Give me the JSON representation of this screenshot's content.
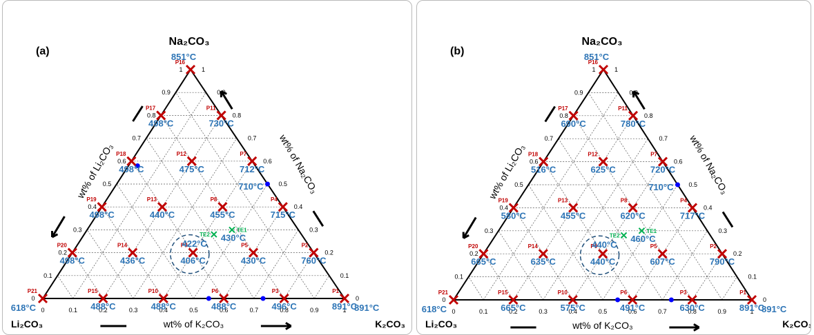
{
  "panels": [
    {
      "label": "(a)",
      "corners": {
        "top": "Na₂CO₃",
        "left": "Li₂CO₃",
        "right": "K₂CO₃"
      },
      "axis_labels": {
        "left": "wt% of Li₂CO₃",
        "right": "wt% of Na₂CO₃",
        "bottom": "wt% of K₂CO₃"
      },
      "ticks": {
        "bottom": [
          "0",
          "0.1",
          "0.2",
          "0.3",
          "0.4",
          "0.5",
          "0.6",
          "0.7",
          "0.8",
          "0.9",
          "1"
        ],
        "left": [
          "1",
          "0.9",
          "0.8",
          "0.7",
          "0.6",
          "0.5",
          "0.4",
          "0.3",
          "0.2",
          "0.1",
          "0"
        ],
        "right": [
          "0",
          "0.1",
          "0.2",
          "0.3",
          "0.4",
          "0.5",
          "0.6",
          "0.7",
          "0.8",
          "0.9",
          "1"
        ]
      },
      "temps": {
        "na2co3": "851°C",
        "li2co3": "618°C",
        "k2co3": "891°C"
      },
      "points": [
        {
          "id": "P1",
          "k": 1.0,
          "na": 0.0,
          "temp": "891°C"
        },
        {
          "id": "P2",
          "k": 0.8,
          "na": 0.2,
          "temp": "760°C"
        },
        {
          "id": "P3",
          "k": 0.8,
          "na": 0.0,
          "temp": "496°C"
        },
        {
          "id": "P4",
          "k": 0.6,
          "na": 0.4,
          "temp": "715°C"
        },
        {
          "id": "P5",
          "k": 0.6,
          "na": 0.2,
          "temp": "430°C"
        },
        {
          "id": "P6",
          "k": 0.6,
          "na": 0.0,
          "temp": "488°C"
        },
        {
          "id": "P7",
          "k": 0.4,
          "na": 0.6,
          "temp": "712°C"
        },
        {
          "id": "P8",
          "k": 0.4,
          "na": 0.4,
          "temp": "455°C"
        },
        {
          "id": "P9",
          "k": 0.4,
          "na": 0.2,
          "temp": "406°C"
        },
        {
          "id": "P10",
          "k": 0.4,
          "na": 0.0,
          "temp": "488°C"
        },
        {
          "id": "P11",
          "k": 0.2,
          "na": 0.8,
          "temp": "730°C"
        },
        {
          "id": "P12",
          "k": 0.2,
          "na": 0.6,
          "temp": "475°C"
        },
        {
          "id": "P13",
          "k": 0.2,
          "na": 0.4,
          "temp": "440°C"
        },
        {
          "id": "P14",
          "k": 0.2,
          "na": 0.2,
          "temp": "436°C"
        },
        {
          "id": "P15",
          "k": 0.2,
          "na": 0.0,
          "temp": "488°C"
        },
        {
          "id": "P16",
          "k": 0.0,
          "na": 1.0,
          "temp": ""
        },
        {
          "id": "P17",
          "k": 0.0,
          "na": 0.8,
          "temp": "498°C"
        },
        {
          "id": "P18",
          "k": 0.0,
          "na": 0.6,
          "temp": "498°C"
        },
        {
          "id": "P19",
          "k": 0.0,
          "na": 0.4,
          "temp": "498°C"
        },
        {
          "id": "P20",
          "k": 0.0,
          "na": 0.2,
          "temp": "498°C"
        },
        {
          "id": "P21",
          "k": 0.0,
          "na": 0.0,
          "temp": ""
        }
      ],
      "eutectics": [
        {
          "id": "TE1",
          "k": 0.48,
          "na": 0.3,
          "temp": "430°C"
        },
        {
          "id": "TE2",
          "k": 0.43,
          "na": 0.28,
          "temp": "422°C"
        }
      ],
      "extra_temps": [
        {
          "label": "710°C",
          "k": 0.5,
          "na": 0.5
        }
      ],
      "blue_dots": [
        {
          "k": 0.55,
          "na": 0.0
        },
        {
          "k": 0.73,
          "na": 0.0
        },
        {
          "k": 0.03,
          "na": 0.58
        },
        {
          "k": 0.5,
          "na": 0.5
        }
      ],
      "circle": {
        "k": 0.38,
        "na": 0.2
      }
    },
    {
      "label": "(b)",
      "corners": {
        "top": "Na₂CO₃",
        "left": "Li₂CO₃",
        "right": "K₂CO₃"
      },
      "axis_labels": {
        "left": "wt% of Li₂CO₃",
        "right": "wt% of Na₂CO₃",
        "bottom": "wt% of K₂CO₃"
      },
      "ticks": {
        "bottom": [
          "0",
          "0.1",
          "0.2",
          "0.3",
          "0.4",
          "0.5",
          "0.6",
          "0.7",
          "0.8",
          "0.9",
          "1"
        ],
        "left": [
          "1",
          "0.9",
          "0.8",
          "0.7",
          "0.6",
          "0.5",
          "0.4",
          "0.3",
          "0.2",
          "0.1",
          "0"
        ],
        "right": [
          "0",
          "0.1",
          "0.2",
          "0.3",
          "0.4",
          "0.5",
          "0.6",
          "0.7",
          "0.8",
          "0.9",
          "1"
        ]
      },
      "temps": {
        "na2co3": "851°C",
        "li2co3": "618°C",
        "k2co3": "891°C"
      },
      "points": [
        {
          "id": "P1",
          "k": 1.0,
          "na": 0.0,
          "temp": "891°C"
        },
        {
          "id": "P2",
          "k": 0.8,
          "na": 0.2,
          "temp": "790°C"
        },
        {
          "id": "P3",
          "k": 0.8,
          "na": 0.0,
          "temp": "630°C"
        },
        {
          "id": "P4",
          "k": 0.6,
          "na": 0.4,
          "temp": "717°C"
        },
        {
          "id": "P5",
          "k": 0.6,
          "na": 0.2,
          "temp": "607°C"
        },
        {
          "id": "P6",
          "k": 0.6,
          "na": 0.0,
          "temp": "491°C"
        },
        {
          "id": "P7",
          "k": 0.4,
          "na": 0.6,
          "temp": "720°C"
        },
        {
          "id": "P8",
          "k": 0.4,
          "na": 0.4,
          "temp": "620°C"
        },
        {
          "id": "P9",
          "k": 0.4,
          "na": 0.2,
          "temp": "440°C"
        },
        {
          "id": "P10",
          "k": 0.4,
          "na": 0.0,
          "temp": "575°C"
        },
        {
          "id": "P11",
          "k": 0.2,
          "na": 0.8,
          "temp": "780°C"
        },
        {
          "id": "P12",
          "k": 0.2,
          "na": 0.6,
          "temp": "625°C"
        },
        {
          "id": "P13",
          "k": 0.2,
          "na": 0.4,
          "temp": "455°C"
        },
        {
          "id": "P14",
          "k": 0.2,
          "na": 0.2,
          "temp": "635°C"
        },
        {
          "id": "P15",
          "k": 0.2,
          "na": 0.0,
          "temp": "665°C"
        },
        {
          "id": "P16",
          "k": 0.0,
          "na": 1.0,
          "temp": ""
        },
        {
          "id": "P17",
          "k": 0.0,
          "na": 0.8,
          "temp": "690°C"
        },
        {
          "id": "P18",
          "k": 0.0,
          "na": 0.6,
          "temp": "516°C"
        },
        {
          "id": "P19",
          "k": 0.0,
          "na": 0.4,
          "temp": "580°C"
        },
        {
          "id": "P20",
          "k": 0.0,
          "na": 0.2,
          "temp": "665°C"
        },
        {
          "id": "P21",
          "k": 0.0,
          "na": 0.0,
          "temp": ""
        }
      ],
      "eutectics": [
        {
          "id": "TE1",
          "k": 0.48,
          "na": 0.3,
          "temp": "460°C"
        },
        {
          "id": "TE2",
          "k": 0.43,
          "na": 0.28,
          "temp": "440°C"
        }
      ],
      "extra_temps": [
        {
          "label": "710°C",
          "k": 0.5,
          "na": 0.5
        }
      ],
      "blue_dots": [
        {
          "k": 0.55,
          "na": 0.0
        },
        {
          "k": 0.73,
          "na": 0.0
        },
        {
          "k": 0.5,
          "na": 0.5
        }
      ],
      "circle": {
        "k": 0.38,
        "na": 0.2
      }
    }
  ],
  "chart_data": [
    {
      "type": "scatter",
      "title": "(a)",
      "diagram": "ternary",
      "components": [
        "Li₂CO₃",
        "Na₂CO₃",
        "K₂CO₃"
      ],
      "axis_labels": [
        "wt% of Li₂CO₃",
        "wt% of Na₂CO₃",
        "wt% of K₂CO₃"
      ],
      "points": [
        {
          "id": "P1",
          "K2CO3": 1.0,
          "Na2CO3": 0.0,
          "temp_C": 891
        },
        {
          "id": "P2",
          "K2CO3": 0.8,
          "Na2CO3": 0.2,
          "temp_C": 760
        },
        {
          "id": "P3",
          "K2CO3": 0.8,
          "Na2CO3": 0.0,
          "temp_C": 496
        },
        {
          "id": "P4",
          "K2CO3": 0.6,
          "Na2CO3": 0.4,
          "temp_C": 715
        },
        {
          "id": "P5",
          "K2CO3": 0.6,
          "Na2CO3": 0.2,
          "temp_C": 430
        },
        {
          "id": "P6",
          "K2CO3": 0.6,
          "Na2CO3": 0.0,
          "temp_C": 488
        },
        {
          "id": "P7",
          "K2CO3": 0.4,
          "Na2CO3": 0.6,
          "temp_C": 712
        },
        {
          "id": "P8",
          "K2CO3": 0.4,
          "Na2CO3": 0.4,
          "temp_C": 455
        },
        {
          "id": "P9",
          "K2CO3": 0.4,
          "Na2CO3": 0.2,
          "temp_C": 406
        },
        {
          "id": "P10",
          "K2CO3": 0.4,
          "Na2CO3": 0.0,
          "temp_C": 488
        },
        {
          "id": "P11",
          "K2CO3": 0.2,
          "Na2CO3": 0.8,
          "temp_C": 730
        },
        {
          "id": "P12",
          "K2CO3": 0.2,
          "Na2CO3": 0.6,
          "temp_C": 475
        },
        {
          "id": "P13",
          "K2CO3": 0.2,
          "Na2CO3": 0.4,
          "temp_C": 440
        },
        {
          "id": "P14",
          "K2CO3": 0.2,
          "Na2CO3": 0.2,
          "temp_C": 436
        },
        {
          "id": "P15",
          "K2CO3": 0.2,
          "Na2CO3": 0.0,
          "temp_C": 488
        },
        {
          "id": "P16",
          "K2CO3": 0.0,
          "Na2CO3": 1.0,
          "temp_C": 851
        },
        {
          "id": "P17",
          "K2CO3": 0.0,
          "Na2CO3": 0.8,
          "temp_C": 498
        },
        {
          "id": "P18",
          "K2CO3": 0.0,
          "Na2CO3": 0.6,
          "temp_C": 498
        },
        {
          "id": "P19",
          "K2CO3": 0.0,
          "Na2CO3": 0.4,
          "temp_C": 498
        },
        {
          "id": "P20",
          "K2CO3": 0.0,
          "Na2CO3": 0.2,
          "temp_C": 498
        },
        {
          "id": "P21",
          "K2CO3": 0.0,
          "Na2CO3": 0.0,
          "temp_C": 618
        }
      ],
      "eutectics": [
        {
          "id": "TE1",
          "temp_C": 430
        },
        {
          "id": "TE2",
          "temp_C": 422
        }
      ],
      "ticks": [
        0,
        0.1,
        0.2,
        0.3,
        0.4,
        0.5,
        0.6,
        0.7,
        0.8,
        0.9,
        1
      ]
    },
    {
      "type": "scatter",
      "title": "(b)",
      "diagram": "ternary",
      "components": [
        "Li₂CO₃",
        "Na₂CO₃",
        "K₂CO₃"
      ],
      "axis_labels": [
        "wt% of Li₂CO₃",
        "wt% of Na₂CO₃",
        "wt% of K₂CO₃"
      ],
      "points": [
        {
          "id": "P1",
          "K2CO3": 1.0,
          "Na2CO3": 0.0,
          "temp_C": 891
        },
        {
          "id": "P2",
          "K2CO3": 0.8,
          "Na2CO3": 0.2,
          "temp_C": 790
        },
        {
          "id": "P3",
          "K2CO3": 0.8,
          "Na2CO3": 0.0,
          "temp_C": 630
        },
        {
          "id": "P4",
          "K2CO3": 0.6,
          "Na2CO3": 0.4,
          "temp_C": 717
        },
        {
          "id": "P5",
          "K2CO3": 0.6,
          "Na2CO3": 0.2,
          "temp_C": 607
        },
        {
          "id": "P6",
          "K2CO3": 0.6,
          "Na2CO3": 0.0,
          "temp_C": 491
        },
        {
          "id": "P7",
          "K2CO3": 0.4,
          "Na2CO3": 0.6,
          "temp_C": 720
        },
        {
          "id": "P8",
          "K2CO3": 0.4,
          "Na2CO3": 0.4,
          "temp_C": 620
        },
        {
          "id": "P9",
          "K2CO3": 0.4,
          "Na2CO3": 0.2,
          "temp_C": 440
        },
        {
          "id": "P10",
          "K2CO3": 0.4,
          "Na2CO3": 0.0,
          "temp_C": 575
        },
        {
          "id": "P11",
          "K2CO3": 0.2,
          "Na2CO3": 0.8,
          "temp_C": 780
        },
        {
          "id": "P12",
          "K2CO3": 0.2,
          "Na2CO3": 0.6,
          "temp_C": 625
        },
        {
          "id": "P13",
          "K2CO3": 0.2,
          "Na2CO3": 0.4,
          "temp_C": 455
        },
        {
          "id": "P14",
          "K2CO3": 0.2,
          "Na2CO3": 0.2,
          "temp_C": 635
        },
        {
          "id": "P15",
          "K2CO3": 0.2,
          "Na2CO3": 0.0,
          "temp_C": 665
        },
        {
          "id": "P16",
          "K2CO3": 0.0,
          "Na2CO3": 1.0,
          "temp_C": 851
        },
        {
          "id": "P17",
          "K2CO3": 0.0,
          "Na2CO3": 0.8,
          "temp_C": 690
        },
        {
          "id": "P18",
          "K2CO3": 0.0,
          "Na2CO3": 0.6,
          "temp_C": 516
        },
        {
          "id": "P19",
          "K2CO3": 0.0,
          "Na2CO3": 0.4,
          "temp_C": 580
        },
        {
          "id": "P20",
          "K2CO3": 0.0,
          "Na2CO3": 0.2,
          "temp_C": 665
        },
        {
          "id": "P21",
          "K2CO3": 0.0,
          "Na2CO3": 0.0,
          "temp_C": 618
        }
      ],
      "eutectics": [
        {
          "id": "TE1",
          "temp_C": 460
        },
        {
          "id": "TE2",
          "temp_C": 440
        }
      ],
      "ticks": [
        0,
        0.1,
        0.2,
        0.3,
        0.4,
        0.5,
        0.6,
        0.7,
        0.8,
        0.9,
        1
      ]
    }
  ]
}
